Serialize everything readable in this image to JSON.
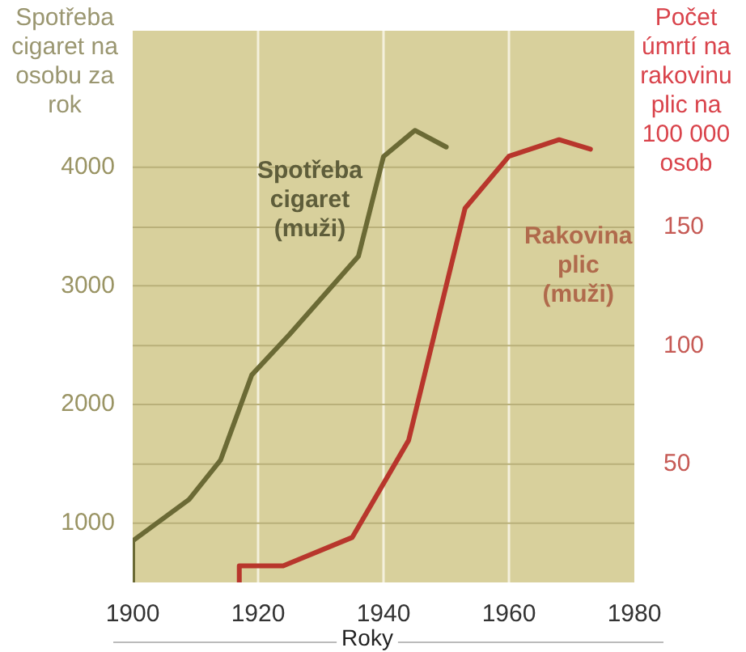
{
  "chart_data": {
    "type": "line",
    "xlabel": "Roky",
    "ylabel": "Spotřeba cigaret na osobu za rok",
    "y2label": "Počet úmrtí na rakovinu plic na 100 000 osob",
    "xlim": [
      1900,
      1980
    ],
    "xticks": [
      1900,
      1920,
      1940,
      1960,
      1980
    ],
    "ylim": [
      500,
      5150
    ],
    "yticks": [
      1000,
      2000,
      3000,
      4000
    ],
    "y2lim": [
      0,
      233
    ],
    "y2ticks": [
      50,
      100,
      150
    ],
    "grid": true,
    "legend": false,
    "marker": "none",
    "line_style": "solid",
    "series": [
      {
        "name": "Spotřeba cigaret (muži)",
        "color": "#6b6a35",
        "x": [
          1900,
          1900,
          1909,
          1914,
          1919,
          1925,
          1936,
          1940,
          1945,
          1950
        ],
        "values": [
          500,
          850,
          1200,
          1530,
          2250,
          2590,
          3250,
          4090,
          4310,
          4170
        ]
      },
      {
        "name": "Rakovina plic (muži)",
        "color": "#b8362c",
        "axis": "y2",
        "x": [
          1917,
          1917,
          1924,
          1935,
          1944,
          1953,
          1960,
          1968,
          1973
        ],
        "values": [
          0,
          7,
          7,
          19,
          60,
          158,
          180,
          187,
          183
        ]
      }
    ]
  }
}
